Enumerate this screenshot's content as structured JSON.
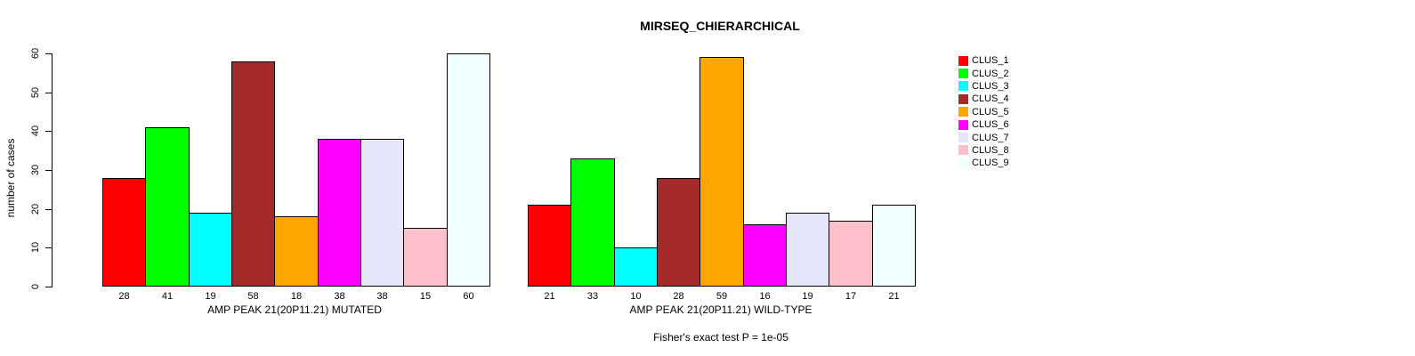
{
  "title": "MIRSEQ_CHIERARCHICAL",
  "ylabel": "number of cases",
  "footer": "Fisher's exact test P = 1e-05",
  "legend": {
    "position": "right",
    "entries": [
      {
        "label": "CLUS_1",
        "color": "#FF0000"
      },
      {
        "label": "CLUS_2",
        "color": "#00FF00"
      },
      {
        "label": "CLUS_3",
        "color": "#00FFFF"
      },
      {
        "label": "CLUS_4",
        "color": "#A52A2A"
      },
      {
        "label": "CLUS_5",
        "color": "#FFA500"
      },
      {
        "label": "CLUS_6",
        "color": "#FF00FF"
      },
      {
        "label": "CLUS_7",
        "color": "#E6E6FA"
      },
      {
        "label": "CLUS_8",
        "color": "#FFC0CB"
      },
      {
        "label": "CLUS_9",
        "color": "#F0FFFF"
      }
    ]
  },
  "chart_data": [
    {
      "type": "bar",
      "panel": "left",
      "title": "MIRSEQ_CHIERARCHICAL",
      "xlabel": "AMP PEAK 21(20P11.21) MUTATED",
      "ylabel": "number of cases",
      "categories": [
        "CLUS_1",
        "CLUS_2",
        "CLUS_3",
        "CLUS_4",
        "CLUS_5",
        "CLUS_6",
        "CLUS_7",
        "CLUS_8",
        "CLUS_9"
      ],
      "values": [
        28,
        41,
        19,
        58,
        18,
        38,
        38,
        15,
        60
      ],
      "colors": [
        "#FF0000",
        "#00FF00",
        "#00FFFF",
        "#A52A2A",
        "#FFA500",
        "#FF00FF",
        "#E6E6FA",
        "#FFC0CB",
        "#F0FFFF"
      ],
      "bar_border_color": "#000000",
      "ylim": [
        0,
        60
      ],
      "yticks": [
        0,
        10,
        20,
        30,
        40,
        50,
        60
      ],
      "y_axis_shown": true,
      "grid": false,
      "value_labels_below_bars": true
    },
    {
      "type": "bar",
      "panel": "right",
      "title": "MIRSEQ_CHIERARCHICAL",
      "xlabel": "AMP PEAK 21(20P11.21) WILD-TYPE",
      "ylabel": "number of cases",
      "categories": [
        "CLUS_1",
        "CLUS_2",
        "CLUS_3",
        "CLUS_4",
        "CLUS_5",
        "CLUS_6",
        "CLUS_7",
        "CLUS_8",
        "CLUS_9"
      ],
      "values": [
        21,
        33,
        10,
        28,
        59,
        16,
        19,
        17,
        21
      ],
      "colors": [
        "#FF0000",
        "#00FF00",
        "#00FFFF",
        "#A52A2A",
        "#FFA500",
        "#FF00FF",
        "#E6E6FA",
        "#FFC0CB",
        "#F0FFFF"
      ],
      "bar_border_color": "#000000",
      "ylim": [
        0,
        60
      ],
      "yticks": [
        0,
        10,
        20,
        30,
        40,
        50,
        60
      ],
      "y_axis_shown": false,
      "grid": false,
      "value_labels_below_bars": true
    }
  ]
}
